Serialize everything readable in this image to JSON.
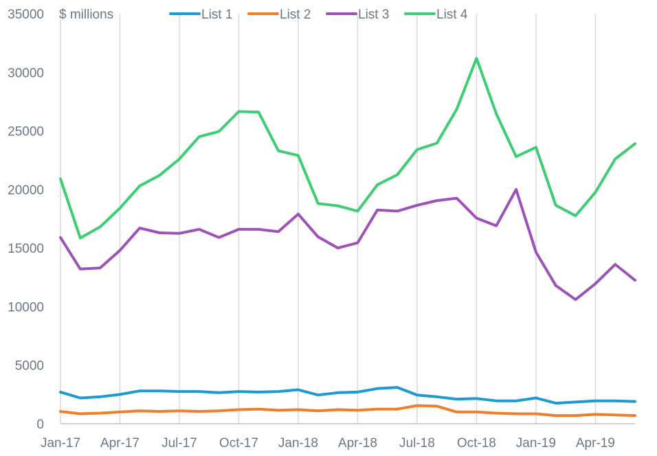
{
  "chart_data": {
    "type": "line",
    "unit_label": "$ millions",
    "ylim": [
      0,
      35000
    ],
    "y_ticks": [
      0,
      5000,
      10000,
      15000,
      20000,
      25000,
      30000,
      35000
    ],
    "x_tick_labels": [
      "Jan-17",
      "Apr-17",
      "Jul-17",
      "Oct-17",
      "Jan-18",
      "Apr-18",
      "Jul-18",
      "Oct-18",
      "Jan-19",
      "Apr-19"
    ],
    "x_tick_indices": [
      0,
      3,
      6,
      9,
      12,
      15,
      18,
      21,
      24,
      27
    ],
    "grid": "vertical",
    "legend_position": "top",
    "x": [
      "Jan-17",
      "Feb-17",
      "Mar-17",
      "Apr-17",
      "May-17",
      "Jun-17",
      "Jul-17",
      "Aug-17",
      "Sep-17",
      "Oct-17",
      "Nov-17",
      "Dec-17",
      "Jan-18",
      "Feb-18",
      "Mar-18",
      "Apr-18",
      "May-18",
      "Jun-18",
      "Jul-18",
      "Aug-18",
      "Sep-18",
      "Oct-18",
      "Nov-18",
      "Dec-18",
      "Jan-19",
      "Feb-19",
      "Mar-19",
      "Apr-19",
      "May-19",
      "Jun-19"
    ],
    "series": [
      {
        "name": "List 1",
        "color": "#1a9bd1",
        "values": [
          2700,
          2200,
          2300,
          2500,
          2800,
          2800,
          2750,
          2750,
          2650,
          2750,
          2700,
          2750,
          2900,
          2450,
          2650,
          2700,
          3000,
          3100,
          2450,
          2300,
          2100,
          2150,
          1950,
          1950,
          2200,
          1750,
          1850,
          1950,
          1950,
          1900
        ]
      },
      {
        "name": "List 2",
        "color": "#f07f2c",
        "values": [
          1050,
          850,
          900,
          1000,
          1100,
          1050,
          1100,
          1050,
          1100,
          1200,
          1250,
          1150,
          1200,
          1100,
          1200,
          1150,
          1250,
          1250,
          1550,
          1500,
          1000,
          1000,
          900,
          850,
          850,
          700,
          700,
          800,
          750,
          700
        ]
      },
      {
        "name": "List 3",
        "color": "#9c52b6",
        "values": [
          15900,
          13200,
          13300,
          14800,
          16700,
          16300,
          16250,
          16600,
          15900,
          16600,
          16600,
          16400,
          17900,
          15950,
          15000,
          15450,
          18250,
          18150,
          18650,
          19050,
          19250,
          17550,
          16900,
          20000,
          14650,
          11800,
          10600,
          11950,
          13600,
          12250
        ]
      },
      {
        "name": "List 4",
        "color": "#3fcd74",
        "values": [
          20900,
          15850,
          16800,
          18400,
          20300,
          21200,
          22600,
          24500,
          24950,
          26650,
          26600,
          23300,
          22900,
          18800,
          18600,
          18150,
          20400,
          21250,
          23400,
          23950,
          26850,
          31200,
          26450,
          22800,
          23600,
          18650,
          17750,
          19750,
          22600,
          23900
        ]
      }
    ]
  }
}
